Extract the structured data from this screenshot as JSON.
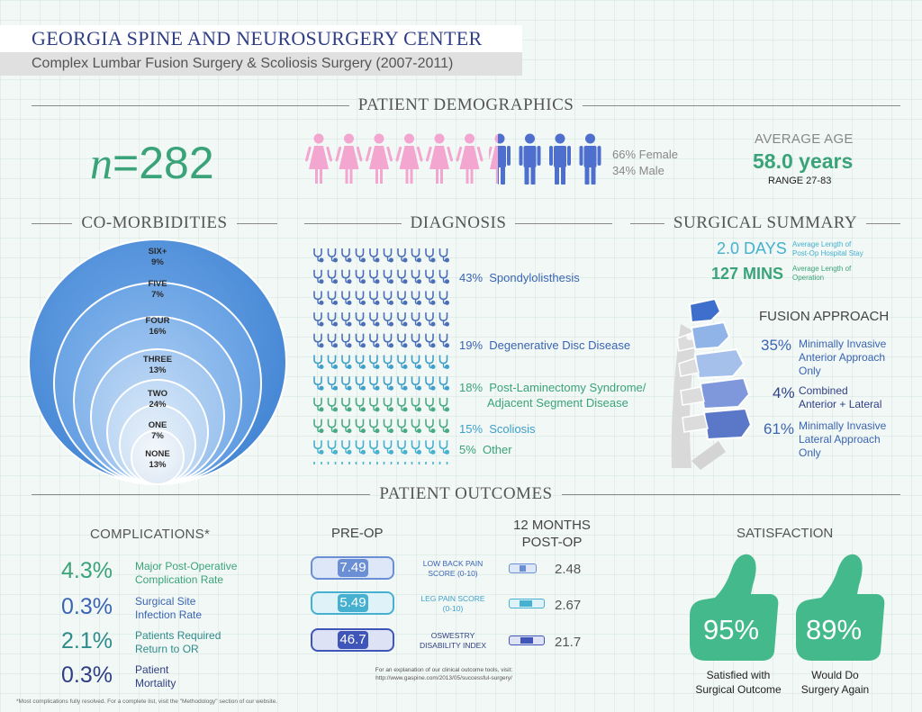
{
  "header": {
    "title": "GEORGIA SPINE AND NEUROSURGERY CENTER",
    "subtitle": "Complex Lumbar Fusion Surgery & Scoliosis Surgery (2007-2011)"
  },
  "sections": {
    "demographics": "PATIENT DEMOGRAPHICS",
    "comorbidities": "CO-MORBIDITIES",
    "diagnosis": "DIAGNOSIS",
    "surgical_summary": "SURGICAL SUMMARY",
    "outcomes": "PATIENT OUTCOMES"
  },
  "demographics": {
    "n_prefix": "n",
    "n_rest": "=282",
    "female_label": "66% Female",
    "male_label": "34% Male",
    "female_fraction": 0.66,
    "avg_age_label": "AVERAGE AGE",
    "avg_age_value": "58.0 years",
    "age_range": "RANGE 27-83"
  },
  "surgical_summary": {
    "stay_value": "2.0 DAYS",
    "stay_desc_1": "Average Length of",
    "stay_desc_2": "Post-Op Hospital Stay",
    "op_value": "127 MINS",
    "op_desc_1": "Average Length of",
    "op_desc_2": "Operation"
  },
  "fusion_approach": {
    "title": "FUSION APPROACH",
    "items": [
      {
        "pct": "35%",
        "line1": "Minimally Invasive",
        "line2": "Anterior Approach",
        "line3": "Only"
      },
      {
        "pct": "4%",
        "line1": "Combined",
        "line2": "Anterior + Lateral",
        "line3": ""
      },
      {
        "pct": "61%",
        "line1": "Minimally Invasive",
        "line2": "Lateral Approach",
        "line3": "Only"
      }
    ]
  },
  "complications": {
    "title": "COMPLICATIONS*",
    "items": [
      {
        "pct": "4.3%",
        "line1": "Major Post-Operative",
        "line2": "Complication Rate"
      },
      {
        "pct": "0.3%",
        "line1": "Surgical Site",
        "line2": "Infection Rate"
      },
      {
        "pct": "2.1%",
        "line1": "Patients Required",
        "line2": "Return to OR"
      },
      {
        "pct": "0.3%",
        "line1": "Patient",
        "line2": "Mortality"
      }
    ],
    "footnote": "*Most complications fully resolved. For a complete list, visit the \"Methodology\" section of our website."
  },
  "outcomes": {
    "preop_title": "PRE-OP",
    "post_title_1": "12 MONTHS",
    "post_title_2": "POST-OP",
    "rows": [
      {
        "pre": "7.49",
        "m1": "LOW BACK PAIN",
        "m2": "SCORE (0-10)",
        "post": "2.48"
      },
      {
        "pre": "5.49",
        "m1": "LEG PAIN SCORE",
        "m2": "(0-10)",
        "post": "2.67"
      },
      {
        "pre": "46.7",
        "m1": "OSWESTRY",
        "m2": "DISABILITY INDEX",
        "post": "21.7"
      }
    ],
    "note_1": "For an explanation of our clinical outcome tools, visit:",
    "note_2": "http://www.gaspine.com/2013/05/successful-surgery/"
  },
  "satisfaction": {
    "title": "SATISFACTION",
    "items": [
      {
        "pct": "95%",
        "line1": "Satisfied with",
        "line2": "Surgical Outcome"
      },
      {
        "pct": "89%",
        "line1": "Would Do",
        "line2": "Surgery Again"
      }
    ]
  },
  "colors": {
    "teal": "#3aa37a",
    "navy": "#2f3f86",
    "blue": "#3a64b4",
    "pink": "#f3a6cf",
    "thumb": "#43b98c"
  },
  "chart_data": [
    {
      "type": "pie",
      "categories": [
        "SIX+",
        "FIVE",
        "FOUR",
        "THREE",
        "TWO",
        "ONE",
        "NONE"
      ],
      "values": [
        9,
        7,
        16,
        13,
        24,
        7,
        13
      ],
      "labels": [
        "9%",
        "7%",
        "16%",
        "13%",
        "24%",
        "7%",
        "13%"
      ]
    },
    {
      "type": "bar",
      "categories": [
        "Spondylolisthesis",
        "Degenerative Disc Disease",
        "Post-Laminectomy Syndrome/",
        "Adjacent Segment Disease",
        "Scoliosis",
        "Other"
      ],
      "labels": [
        "43%",
        "19%",
        "18%",
        "",
        "15%",
        "5%"
      ],
      "values": [
        43,
        19,
        18,
        null,
        15,
        5
      ],
      "icons_per_row": 10,
      "row_colors": [
        "#4a6fb8",
        "#4a6fb8",
        "#4a6fb8",
        "#4a6fb8",
        "#4a6fb8",
        "#3e9fcb",
        "#3e9fcb",
        "#48aa84",
        "#48aa84",
        "#45b0d0",
        "#45b0d0"
      ]
    }
  ]
}
